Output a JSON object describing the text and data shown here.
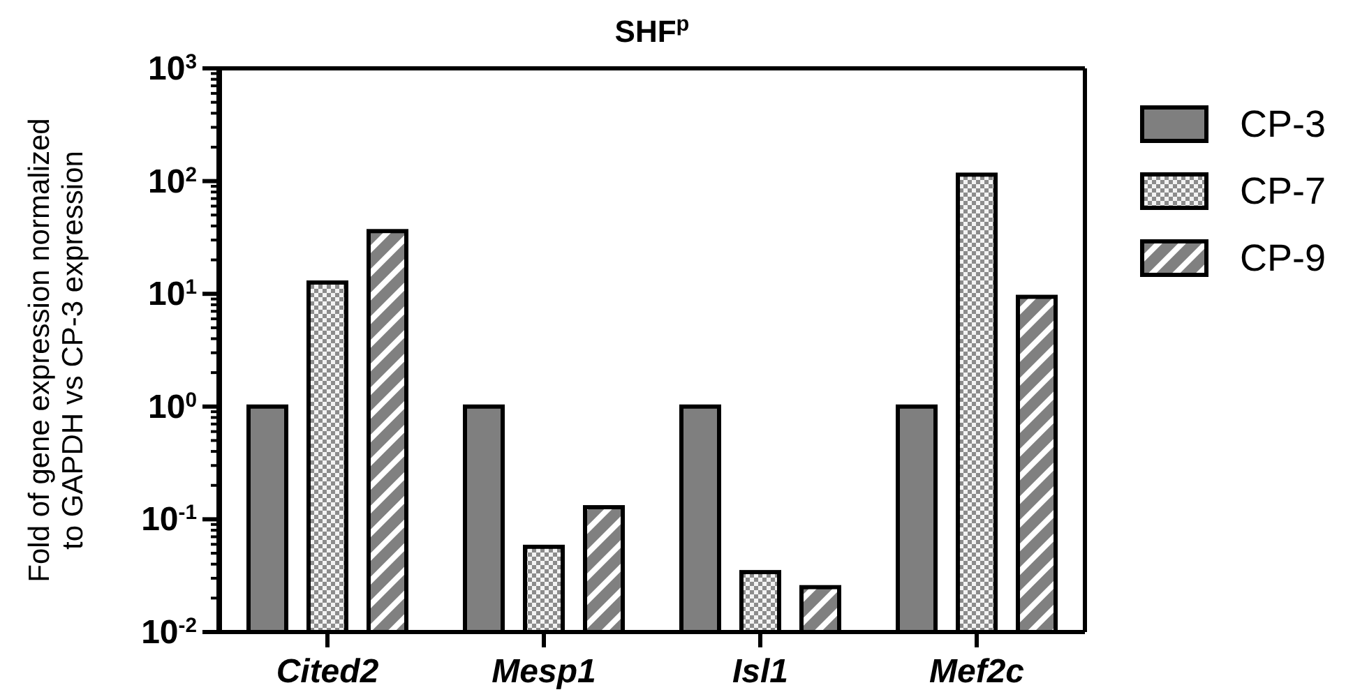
{
  "chart_data": {
    "type": "bar",
    "title": "SHF$^{p}$",
    "ylabel": "Fold of gene expression normalized\nto GAPDH  vs CP-3 expression",
    "categories": [
      "Cited2",
      "Mesp1",
      "Isl1",
      "Mef2c"
    ],
    "series": [
      {
        "name": "CP-3",
        "color": "#7f7f7f",
        "values": [
          1,
          1,
          1,
          1
        ]
      },
      {
        "name": "CP-7",
        "color": "#8c8c8c",
        "values": [
          12.6,
          0.057,
          0.034,
          114
        ]
      },
      {
        "name": "CP-9",
        "color": "#808080",
        "values": [
          36,
          0.128,
          0.025,
          9.4
        ]
      }
    ],
    "log": true,
    "ylim": [
      0.01,
      1000
    ],
    "yticks": [
      {
        "value": 0.01,
        "label": "10$^{-2}$"
      },
      {
        "value": 0.1,
        "label": "10$^{-1}$"
      },
      {
        "value": 1,
        "label": "10$^{0}$"
      },
      {
        "value": 10,
        "label": "10$^{1}$"
      },
      {
        "value": 100,
        "label": "10$^{2}$"
      },
      {
        "value": 1000,
        "label": "10$^{3}$"
      }
    ],
    "grid": false,
    "legend": "right"
  }
}
